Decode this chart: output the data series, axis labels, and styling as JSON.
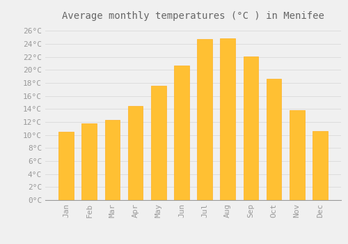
{
  "title": "Average monthly temperatures (°C ) in Menifee",
  "months": [
    "Jan",
    "Feb",
    "Mar",
    "Apr",
    "May",
    "Jun",
    "Jul",
    "Aug",
    "Sep",
    "Oct",
    "Nov",
    "Dec"
  ],
  "values": [
    10.5,
    11.8,
    12.3,
    14.5,
    17.6,
    20.7,
    24.8,
    24.9,
    22.1,
    18.6,
    13.8,
    10.6
  ],
  "bar_color": "#FFC033",
  "bar_edge_color": "#FFB020",
  "background_color": "#F0F0F0",
  "grid_color": "#DDDDDD",
  "text_color": "#999999",
  "title_color": "#666666",
  "ylim": [
    0,
    27
  ],
  "yticks": [
    0,
    2,
    4,
    6,
    8,
    10,
    12,
    14,
    16,
    18,
    20,
    22,
    24,
    26
  ],
  "title_fontsize": 10,
  "tick_fontsize": 8,
  "font_family": "monospace"
}
